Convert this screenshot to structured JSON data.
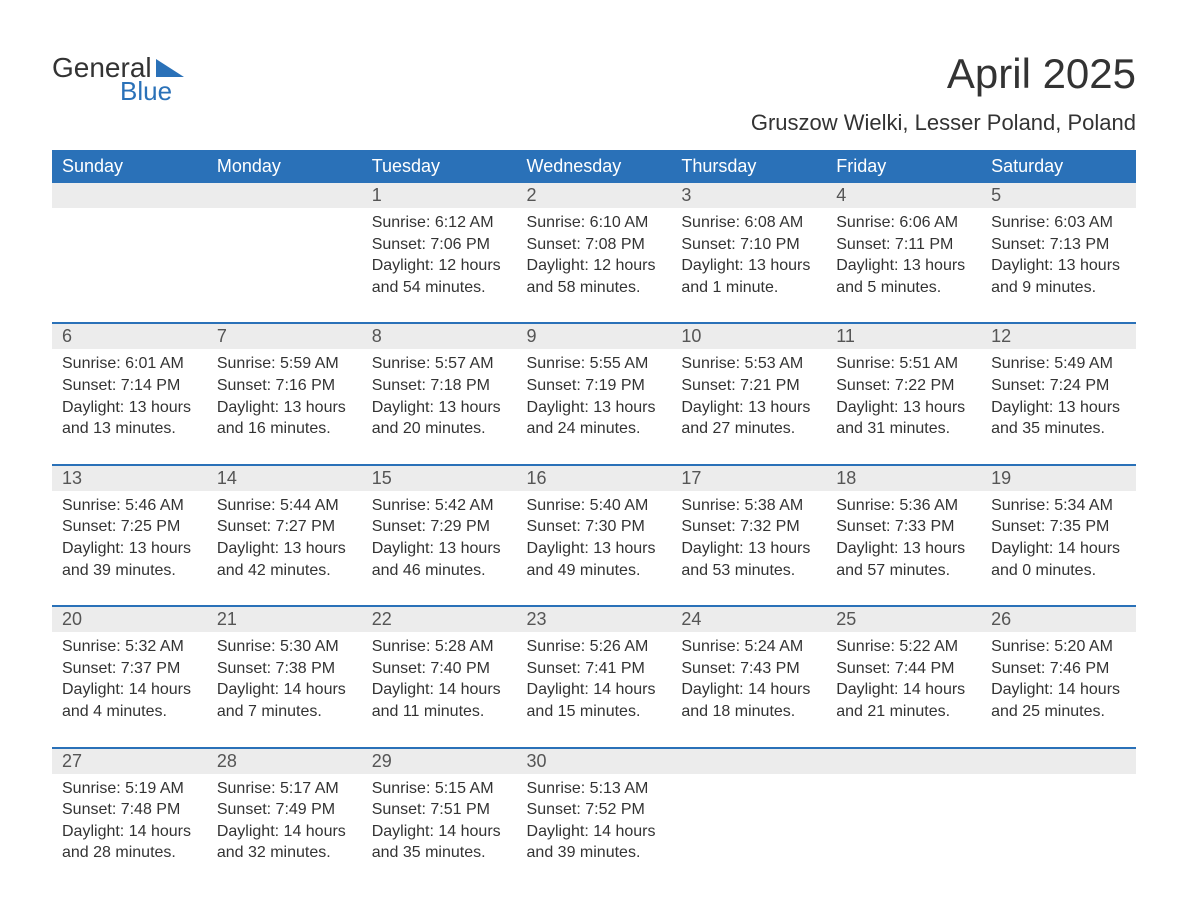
{
  "logo": {
    "word1": "General",
    "word2": "Blue",
    "mark_color": "#2a71b8",
    "text_color": "#333333"
  },
  "title": "April 2025",
  "subtitle": "Gruszow Wielki, Lesser Poland, Poland",
  "colors": {
    "header_bg": "#2a71b8",
    "header_text": "#ffffff",
    "daynum_bg": "#ececec",
    "daynum_text": "#555555",
    "body_text": "#333333",
    "row_border": "#2a71b8",
    "page_bg": "#ffffff"
  },
  "typography": {
    "title_fontsize": 42,
    "subtitle_fontsize": 22,
    "header_fontsize": 18,
    "daynum_fontsize": 18,
    "body_fontsize": 16,
    "font_family": "Arial"
  },
  "weekdays": [
    "Sunday",
    "Monday",
    "Tuesday",
    "Wednesday",
    "Thursday",
    "Friday",
    "Saturday"
  ],
  "weeks": [
    [
      {
        "n": "",
        "sunrise": "",
        "sunset": "",
        "daylight": ""
      },
      {
        "n": "",
        "sunrise": "",
        "sunset": "",
        "daylight": ""
      },
      {
        "n": "1",
        "sunrise": "Sunrise: 6:12 AM",
        "sunset": "Sunset: 7:06 PM",
        "daylight": "Daylight: 12 hours and 54 minutes."
      },
      {
        "n": "2",
        "sunrise": "Sunrise: 6:10 AM",
        "sunset": "Sunset: 7:08 PM",
        "daylight": "Daylight: 12 hours and 58 minutes."
      },
      {
        "n": "3",
        "sunrise": "Sunrise: 6:08 AM",
        "sunset": "Sunset: 7:10 PM",
        "daylight": "Daylight: 13 hours and 1 minute."
      },
      {
        "n": "4",
        "sunrise": "Sunrise: 6:06 AM",
        "sunset": "Sunset: 7:11 PM",
        "daylight": "Daylight: 13 hours and 5 minutes."
      },
      {
        "n": "5",
        "sunrise": "Sunrise: 6:03 AM",
        "sunset": "Sunset: 7:13 PM",
        "daylight": "Daylight: 13 hours and 9 minutes."
      }
    ],
    [
      {
        "n": "6",
        "sunrise": "Sunrise: 6:01 AM",
        "sunset": "Sunset: 7:14 PM",
        "daylight": "Daylight: 13 hours and 13 minutes."
      },
      {
        "n": "7",
        "sunrise": "Sunrise: 5:59 AM",
        "sunset": "Sunset: 7:16 PM",
        "daylight": "Daylight: 13 hours and 16 minutes."
      },
      {
        "n": "8",
        "sunrise": "Sunrise: 5:57 AM",
        "sunset": "Sunset: 7:18 PM",
        "daylight": "Daylight: 13 hours and 20 minutes."
      },
      {
        "n": "9",
        "sunrise": "Sunrise: 5:55 AM",
        "sunset": "Sunset: 7:19 PM",
        "daylight": "Daylight: 13 hours and 24 minutes."
      },
      {
        "n": "10",
        "sunrise": "Sunrise: 5:53 AM",
        "sunset": "Sunset: 7:21 PM",
        "daylight": "Daylight: 13 hours and 27 minutes."
      },
      {
        "n": "11",
        "sunrise": "Sunrise: 5:51 AM",
        "sunset": "Sunset: 7:22 PM",
        "daylight": "Daylight: 13 hours and 31 minutes."
      },
      {
        "n": "12",
        "sunrise": "Sunrise: 5:49 AM",
        "sunset": "Sunset: 7:24 PM",
        "daylight": "Daylight: 13 hours and 35 minutes."
      }
    ],
    [
      {
        "n": "13",
        "sunrise": "Sunrise: 5:46 AM",
        "sunset": "Sunset: 7:25 PM",
        "daylight": "Daylight: 13 hours and 39 minutes."
      },
      {
        "n": "14",
        "sunrise": "Sunrise: 5:44 AM",
        "sunset": "Sunset: 7:27 PM",
        "daylight": "Daylight: 13 hours and 42 minutes."
      },
      {
        "n": "15",
        "sunrise": "Sunrise: 5:42 AM",
        "sunset": "Sunset: 7:29 PM",
        "daylight": "Daylight: 13 hours and 46 minutes."
      },
      {
        "n": "16",
        "sunrise": "Sunrise: 5:40 AM",
        "sunset": "Sunset: 7:30 PM",
        "daylight": "Daylight: 13 hours and 49 minutes."
      },
      {
        "n": "17",
        "sunrise": "Sunrise: 5:38 AM",
        "sunset": "Sunset: 7:32 PM",
        "daylight": "Daylight: 13 hours and 53 minutes."
      },
      {
        "n": "18",
        "sunrise": "Sunrise: 5:36 AM",
        "sunset": "Sunset: 7:33 PM",
        "daylight": "Daylight: 13 hours and 57 minutes."
      },
      {
        "n": "19",
        "sunrise": "Sunrise: 5:34 AM",
        "sunset": "Sunset: 7:35 PM",
        "daylight": "Daylight: 14 hours and 0 minutes."
      }
    ],
    [
      {
        "n": "20",
        "sunrise": "Sunrise: 5:32 AM",
        "sunset": "Sunset: 7:37 PM",
        "daylight": "Daylight: 14 hours and 4 minutes."
      },
      {
        "n": "21",
        "sunrise": "Sunrise: 5:30 AM",
        "sunset": "Sunset: 7:38 PM",
        "daylight": "Daylight: 14 hours and 7 minutes."
      },
      {
        "n": "22",
        "sunrise": "Sunrise: 5:28 AM",
        "sunset": "Sunset: 7:40 PM",
        "daylight": "Daylight: 14 hours and 11 minutes."
      },
      {
        "n": "23",
        "sunrise": "Sunrise: 5:26 AM",
        "sunset": "Sunset: 7:41 PM",
        "daylight": "Daylight: 14 hours and 15 minutes."
      },
      {
        "n": "24",
        "sunrise": "Sunrise: 5:24 AM",
        "sunset": "Sunset: 7:43 PM",
        "daylight": "Daylight: 14 hours and 18 minutes."
      },
      {
        "n": "25",
        "sunrise": "Sunrise: 5:22 AM",
        "sunset": "Sunset: 7:44 PM",
        "daylight": "Daylight: 14 hours and 21 minutes."
      },
      {
        "n": "26",
        "sunrise": "Sunrise: 5:20 AM",
        "sunset": "Sunset: 7:46 PM",
        "daylight": "Daylight: 14 hours and 25 minutes."
      }
    ],
    [
      {
        "n": "27",
        "sunrise": "Sunrise: 5:19 AM",
        "sunset": "Sunset: 7:48 PM",
        "daylight": "Daylight: 14 hours and 28 minutes."
      },
      {
        "n": "28",
        "sunrise": "Sunrise: 5:17 AM",
        "sunset": "Sunset: 7:49 PM",
        "daylight": "Daylight: 14 hours and 32 minutes."
      },
      {
        "n": "29",
        "sunrise": "Sunrise: 5:15 AM",
        "sunset": "Sunset: 7:51 PM",
        "daylight": "Daylight: 14 hours and 35 minutes."
      },
      {
        "n": "30",
        "sunrise": "Sunrise: 5:13 AM",
        "sunset": "Sunset: 7:52 PM",
        "daylight": "Daylight: 14 hours and 39 minutes."
      },
      {
        "n": "",
        "sunrise": "",
        "sunset": "",
        "daylight": ""
      },
      {
        "n": "",
        "sunrise": "",
        "sunset": "",
        "daylight": ""
      },
      {
        "n": "",
        "sunrise": "",
        "sunset": "",
        "daylight": ""
      }
    ]
  ]
}
